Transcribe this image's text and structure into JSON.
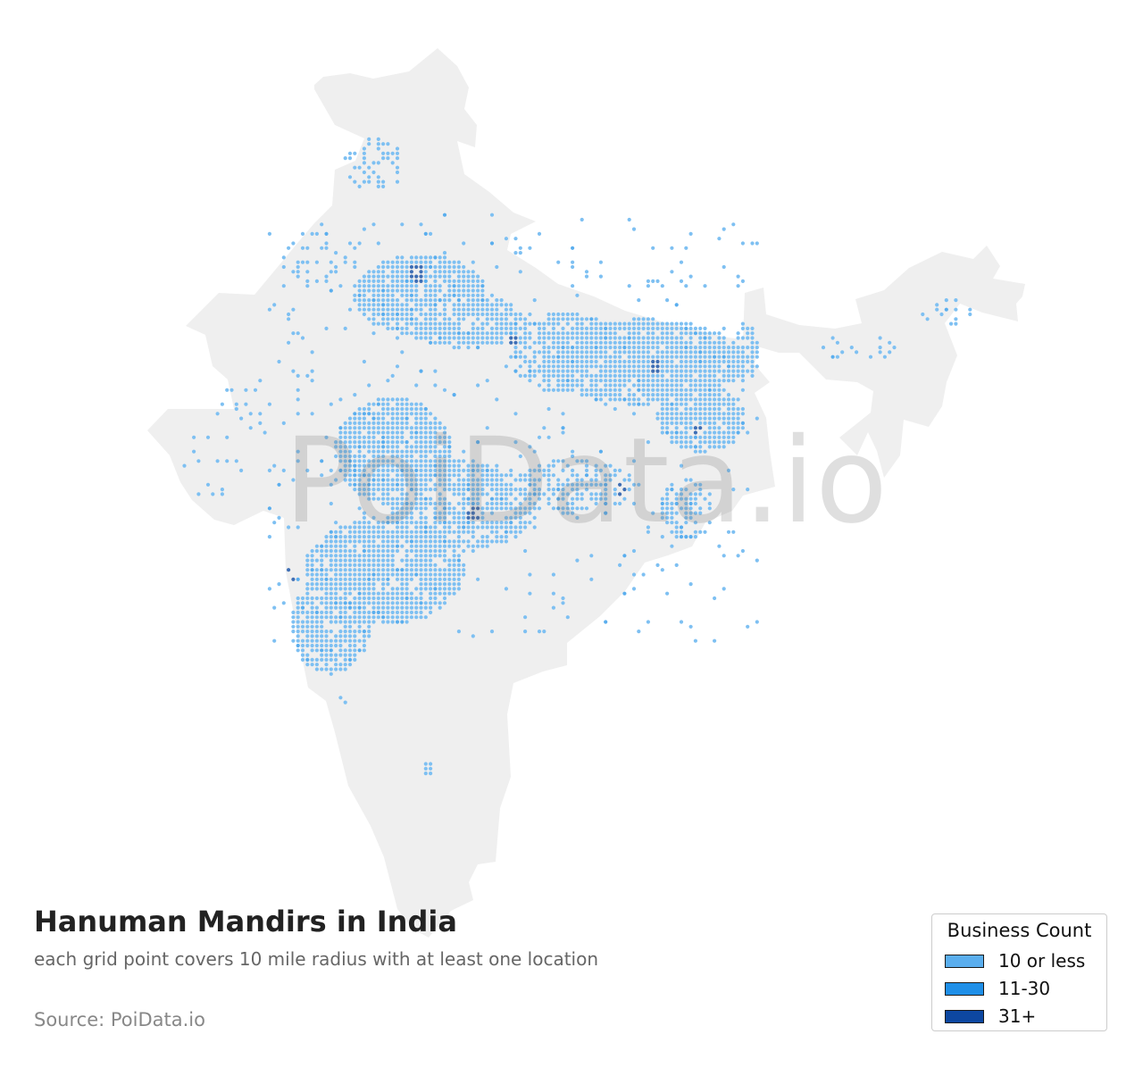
{
  "map": {
    "title": "Hanuman Mandirs in India",
    "subtitle": "each grid point covers 10 mile radius with at least one location",
    "source": "Source: PoiData.io",
    "watermark": "PoiData.io",
    "land_color": "#efefef",
    "legend": {
      "title": "Business Count",
      "items": [
        {
          "label": "10 or less",
          "color": "#5aaeee"
        },
        {
          "label": "11-30",
          "color": "#1f8fe8"
        },
        {
          "label": "31+",
          "color": "#0d47a1"
        }
      ]
    }
  }
}
